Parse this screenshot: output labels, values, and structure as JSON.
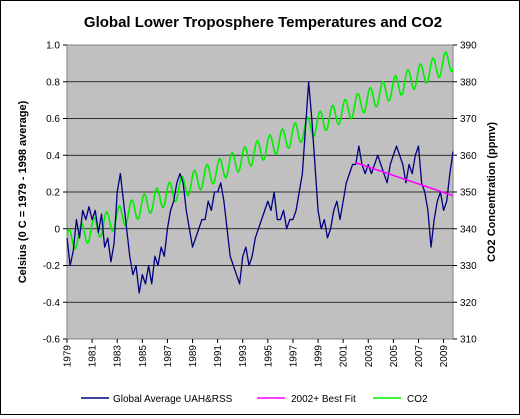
{
  "chart_data": {
    "type": "line",
    "title": "Global Lower Troposphere  Temperatures  and CO2",
    "ylabel_left": "Celsius (0 C = 1979 - 1998 average)",
    "ylabel_right": "CO2 Concentration  (ppmv)",
    "xlabel": "",
    "x_ticks": [
      "1979",
      "1981",
      "1983",
      "1985",
      "1987",
      "1989",
      "1991",
      "1993",
      "1995",
      "1997",
      "1999",
      "2001",
      "2003",
      "2005",
      "2007",
      "2009"
    ],
    "y_left_ticks": [
      "1.0",
      "0.8",
      "0.6",
      "0.4",
      "0.2",
      "0",
      "-0.2",
      "-0.4",
      "-0.6"
    ],
    "y_right_ticks": [
      "390",
      "380",
      "370",
      "360",
      "350",
      "340",
      "330",
      "320",
      "310"
    ],
    "y_left_range": [
      -0.6,
      1.0
    ],
    "y_right_range": [
      310,
      390
    ],
    "x_range": [
      1979.0,
      2009.75
    ],
    "grid": "horizontal",
    "legend_position": "bottom",
    "series": [
      {
        "name": "Global Average UAH&RSS",
        "axis": "left",
        "color": "#000080",
        "points": [
          [
            1979.0,
            -0.05
          ],
          [
            1979.25,
            -0.2
          ],
          [
            1979.5,
            -0.12
          ],
          [
            1979.75,
            0.05
          ],
          [
            1980.0,
            -0.05
          ],
          [
            1980.25,
            0.1
          ],
          [
            1980.5,
            0.05
          ],
          [
            1980.75,
            0.12
          ],
          [
            1981.0,
            0.05
          ],
          [
            1981.25,
            0.1
          ],
          [
            1981.5,
            -0.02
          ],
          [
            1981.75,
            0.08
          ],
          [
            1982.0,
            -0.1
          ],
          [
            1982.25,
            -0.05
          ],
          [
            1982.5,
            -0.18
          ],
          [
            1982.75,
            -0.08
          ],
          [
            1983.0,
            0.2
          ],
          [
            1983.25,
            0.3
          ],
          [
            1983.5,
            0.15
          ],
          [
            1983.75,
            0.0
          ],
          [
            1984.0,
            -0.15
          ],
          [
            1984.25,
            -0.25
          ],
          [
            1984.5,
            -0.2
          ],
          [
            1984.75,
            -0.35
          ],
          [
            1985.0,
            -0.25
          ],
          [
            1985.25,
            -0.3
          ],
          [
            1985.5,
            -0.2
          ],
          [
            1985.75,
            -0.3
          ],
          [
            1986.0,
            -0.15
          ],
          [
            1986.25,
            -0.2
          ],
          [
            1986.5,
            -0.1
          ],
          [
            1986.75,
            -0.15
          ],
          [
            1987.0,
            0.0
          ],
          [
            1987.25,
            0.1
          ],
          [
            1987.5,
            0.15
          ],
          [
            1987.75,
            0.25
          ],
          [
            1988.0,
            0.3
          ],
          [
            1988.25,
            0.25
          ],
          [
            1988.5,
            0.1
          ],
          [
            1988.75,
            0.0
          ],
          [
            1989.0,
            -0.1
          ],
          [
            1989.25,
            -0.05
          ],
          [
            1989.5,
            0.0
          ],
          [
            1989.75,
            0.05
          ],
          [
            1990.0,
            0.05
          ],
          [
            1990.25,
            0.15
          ],
          [
            1990.5,
            0.1
          ],
          [
            1990.75,
            0.2
          ],
          [
            1991.0,
            0.2
          ],
          [
            1991.25,
            0.25
          ],
          [
            1991.5,
            0.15
          ],
          [
            1991.75,
            0.0
          ],
          [
            1992.0,
            -0.15
          ],
          [
            1992.25,
            -0.2
          ],
          [
            1992.5,
            -0.25
          ],
          [
            1992.75,
            -0.3
          ],
          [
            1993.0,
            -0.15
          ],
          [
            1993.25,
            -0.1
          ],
          [
            1993.5,
            -0.2
          ],
          [
            1993.75,
            -0.15
          ],
          [
            1994.0,
            -0.05
          ],
          [
            1994.25,
            0.0
          ],
          [
            1994.5,
            0.05
          ],
          [
            1994.75,
            0.1
          ],
          [
            1995.0,
            0.15
          ],
          [
            1995.25,
            0.1
          ],
          [
            1995.5,
            0.2
          ],
          [
            1995.75,
            0.05
          ],
          [
            1996.0,
            0.05
          ],
          [
            1996.25,
            0.1
          ],
          [
            1996.5,
            0.0
          ],
          [
            1996.75,
            0.05
          ],
          [
            1997.0,
            0.05
          ],
          [
            1997.25,
            0.1
          ],
          [
            1997.5,
            0.2
          ],
          [
            1997.75,
            0.3
          ],
          [
            1998.0,
            0.55
          ],
          [
            1998.25,
            0.8
          ],
          [
            1998.5,
            0.6
          ],
          [
            1998.75,
            0.35
          ],
          [
            1999.0,
            0.1
          ],
          [
            1999.25,
            0.0
          ],
          [
            1999.5,
            0.05
          ],
          [
            1999.75,
            -0.05
          ],
          [
            2000.0,
            0.0
          ],
          [
            2000.25,
            0.1
          ],
          [
            2000.5,
            0.15
          ],
          [
            2000.75,
            0.05
          ],
          [
            2001.0,
            0.15
          ],
          [
            2001.25,
            0.25
          ],
          [
            2001.5,
            0.3
          ],
          [
            2001.75,
            0.35
          ],
          [
            2002.0,
            0.35
          ],
          [
            2002.25,
            0.45
          ],
          [
            2002.5,
            0.35
          ],
          [
            2002.75,
            0.3
          ],
          [
            2003.0,
            0.35
          ],
          [
            2003.25,
            0.3
          ],
          [
            2003.5,
            0.35
          ],
          [
            2003.75,
            0.4
          ],
          [
            2004.0,
            0.35
          ],
          [
            2004.25,
            0.3
          ],
          [
            2004.5,
            0.25
          ],
          [
            2004.75,
            0.35
          ],
          [
            2005.0,
            0.4
          ],
          [
            2005.25,
            0.45
          ],
          [
            2005.5,
            0.4
          ],
          [
            2005.75,
            0.35
          ],
          [
            2006.0,
            0.25
          ],
          [
            2006.25,
            0.35
          ],
          [
            2006.5,
            0.3
          ],
          [
            2006.75,
            0.4
          ],
          [
            2007.0,
            0.45
          ],
          [
            2007.25,
            0.25
          ],
          [
            2007.5,
            0.2
          ],
          [
            2007.75,
            0.1
          ],
          [
            2008.0,
            -0.1
          ],
          [
            2008.25,
            0.05
          ],
          [
            2008.5,
            0.15
          ],
          [
            2008.75,
            0.2
          ],
          [
            2009.0,
            0.1
          ],
          [
            2009.25,
            0.15
          ],
          [
            2009.5,
            0.3
          ],
          [
            2009.75,
            0.42
          ]
        ]
      },
      {
        "name": "2002+ Best Fit",
        "axis": "left",
        "color": "#ff00ff",
        "points": [
          [
            2002.0,
            0.36
          ],
          [
            2009.75,
            0.18
          ]
        ]
      },
      {
        "name": "CO2",
        "axis": "right",
        "color": "#00ee00",
        "baseline": [
          [
            1979.0,
            336.5
          ],
          [
            2009.75,
            386.0
          ]
        ],
        "seasonal_amplitude_ppmv": 3.0
      }
    ]
  }
}
